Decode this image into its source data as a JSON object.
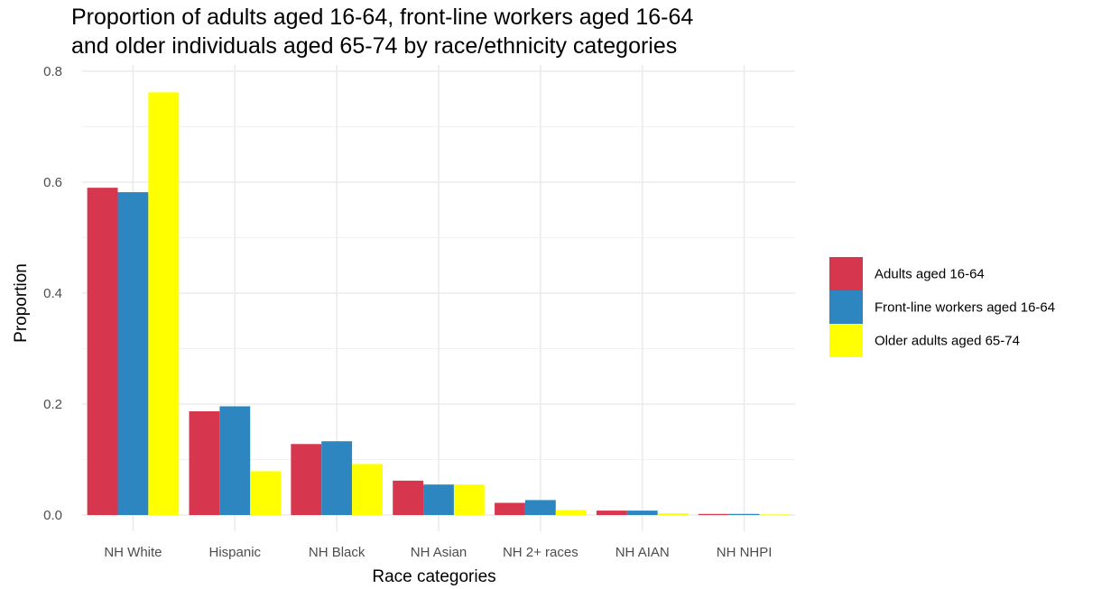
{
  "chart_data": {
    "type": "bar",
    "title_lines": [
      "Proportion of adults aged 16-64, front-line workers aged 16-64",
      "and older individuals aged 65-74 by race/ethnicity categories"
    ],
    "xlabel": "Race categories",
    "ylabel": "Proportion",
    "ylim": [
      0,
      0.8
    ],
    "yticks": [
      "0.0",
      "0.2",
      "0.4",
      "0.6",
      "0.8"
    ],
    "ytick_values": [
      0,
      0.2,
      0.4,
      0.6,
      0.8
    ],
    "grid": true,
    "legend_position": "right",
    "categories": [
      "NH White",
      "Hispanic",
      "NH Black",
      "NH Asian",
      "NH 2+ races",
      "NH AIAN",
      "NH NHPI"
    ],
    "series": [
      {
        "name": "Adults aged 16-64",
        "color": "#D6374F",
        "values": [
          0.59,
          0.187,
          0.128,
          0.062,
          0.022,
          0.008,
          0.002
        ]
      },
      {
        "name": "Front-line workers aged 16-64",
        "color": "#2E86C1",
        "values": [
          0.582,
          0.196,
          0.133,
          0.055,
          0.027,
          0.008,
          0.002
        ]
      },
      {
        "name": "Older adults aged 65-74",
        "color": "#FFFF00",
        "values": [
          0.762,
          0.079,
          0.092,
          0.055,
          0.009,
          0.003,
          0.001
        ]
      }
    ]
  }
}
